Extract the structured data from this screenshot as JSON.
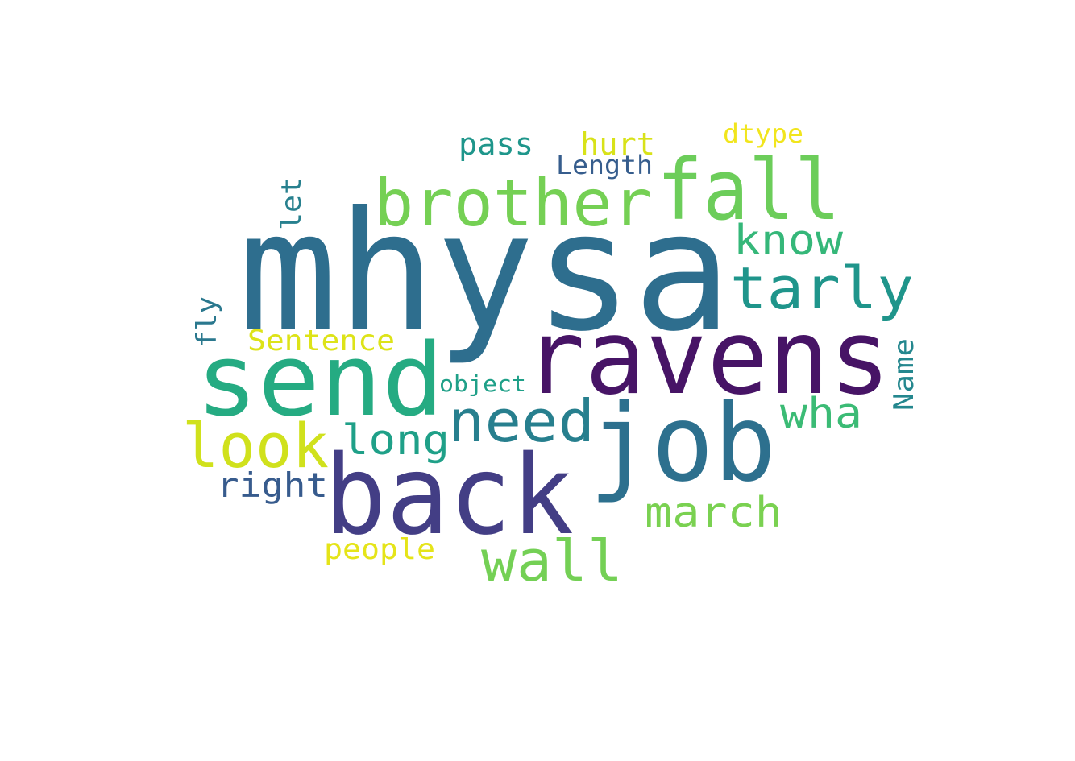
{
  "wordcloud": {
    "words": [
      {
        "text": "mhysa",
        "color": "#2e6e8e"
      },
      {
        "text": "ravens",
        "color": "#471466"
      },
      {
        "text": "back",
        "color": "#433e85"
      },
      {
        "text": "send",
        "color": "#25ab82"
      },
      {
        "text": "job",
        "color": "#2d708e"
      },
      {
        "text": "fall",
        "color": "#6ccd5a"
      },
      {
        "text": "brother",
        "color": "#75d054"
      },
      {
        "text": "tarly",
        "color": "#1f958b"
      },
      {
        "text": "look",
        "color": "#d0e11c"
      },
      {
        "text": "need",
        "color": "#277f8e"
      },
      {
        "text": "wall",
        "color": "#74d055"
      },
      {
        "text": "know",
        "color": "#35b779"
      },
      {
        "text": "wha",
        "color": "#3bbb75"
      },
      {
        "text": "march",
        "color": "#7ad151"
      },
      {
        "text": "long",
        "color": "#1fa088"
      },
      {
        "text": "right",
        "color": "#375b8d"
      },
      {
        "text": "Sentence",
        "color": "#dde318"
      },
      {
        "text": "people",
        "color": "#e5e419"
      },
      {
        "text": "pass",
        "color": "#1f968b"
      },
      {
        "text": "hurt",
        "color": "#d8e219"
      },
      {
        "text": "Length",
        "color": "#365d8d"
      },
      {
        "text": "dtype",
        "color": "#f1e51d"
      },
      {
        "text": "object",
        "color": "#1fa088"
      },
      {
        "text": "Name",
        "color": "#24878e"
      },
      {
        "text": "fly",
        "color": "#2a788e"
      },
      {
        "text": "let",
        "color": "#27808e"
      }
    ]
  }
}
